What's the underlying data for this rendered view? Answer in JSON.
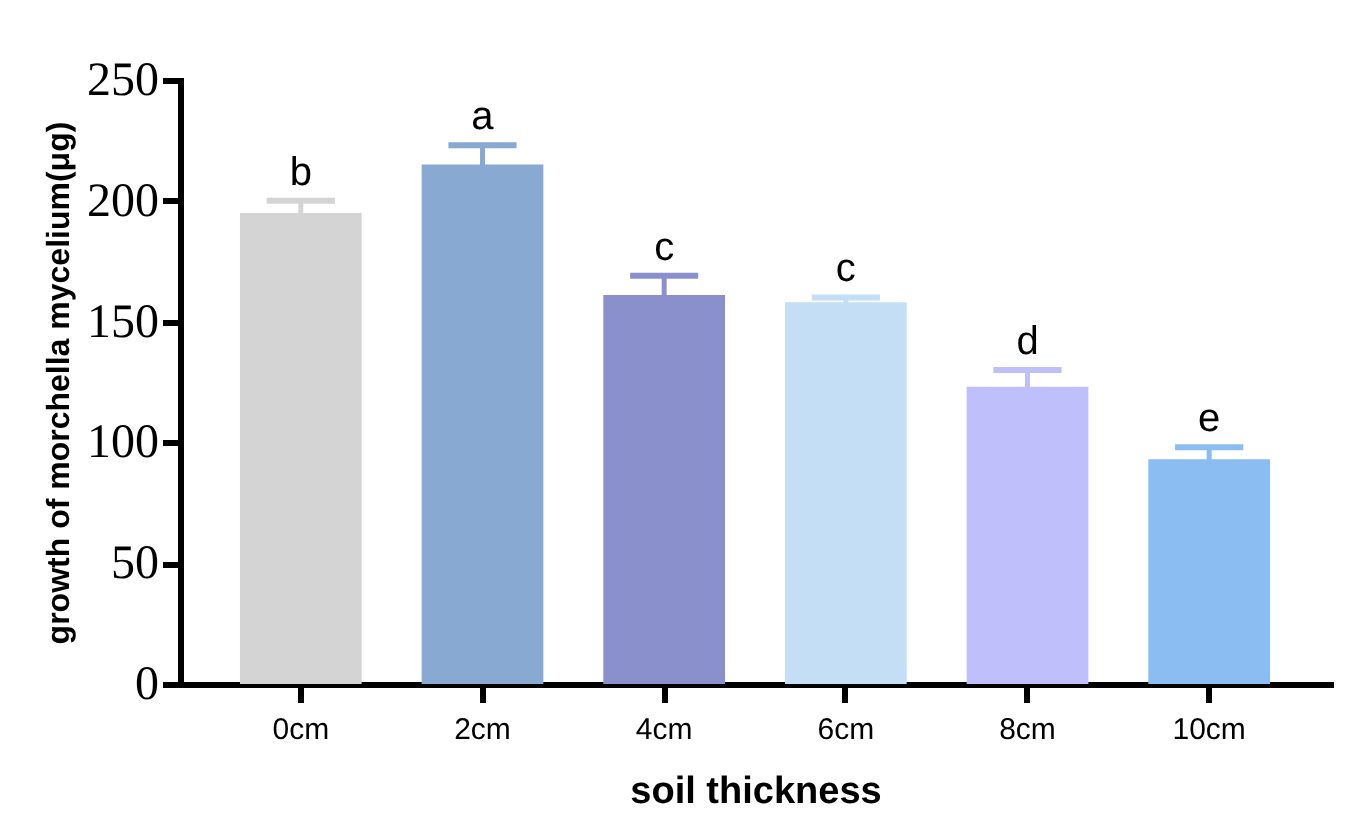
{
  "chart_data": {
    "type": "bar",
    "xlabel": "soil thickness",
    "ylabel": "growth of morchella mycelium(μg)",
    "categories": [
      "0cm",
      "2cm",
      "4cm",
      "6cm",
      "8cm",
      "10cm"
    ],
    "values": [
      195,
      215,
      161,
      158,
      123,
      93
    ],
    "errors": [
      5,
      8,
      8,
      2,
      7,
      5
    ],
    "colors": [
      "#d4d4d4",
      "#87a9d2",
      "#8a90cc",
      "#c4def5",
      "#bfbffb",
      "#8bbcf2"
    ],
    "ylim": [
      0,
      250
    ],
    "yticks": [
      0,
      50,
      100,
      150,
      200,
      250
    ],
    "grid": false,
    "value_labels": [
      "b",
      "a",
      "c",
      "c",
      "d",
      "e"
    ]
  }
}
